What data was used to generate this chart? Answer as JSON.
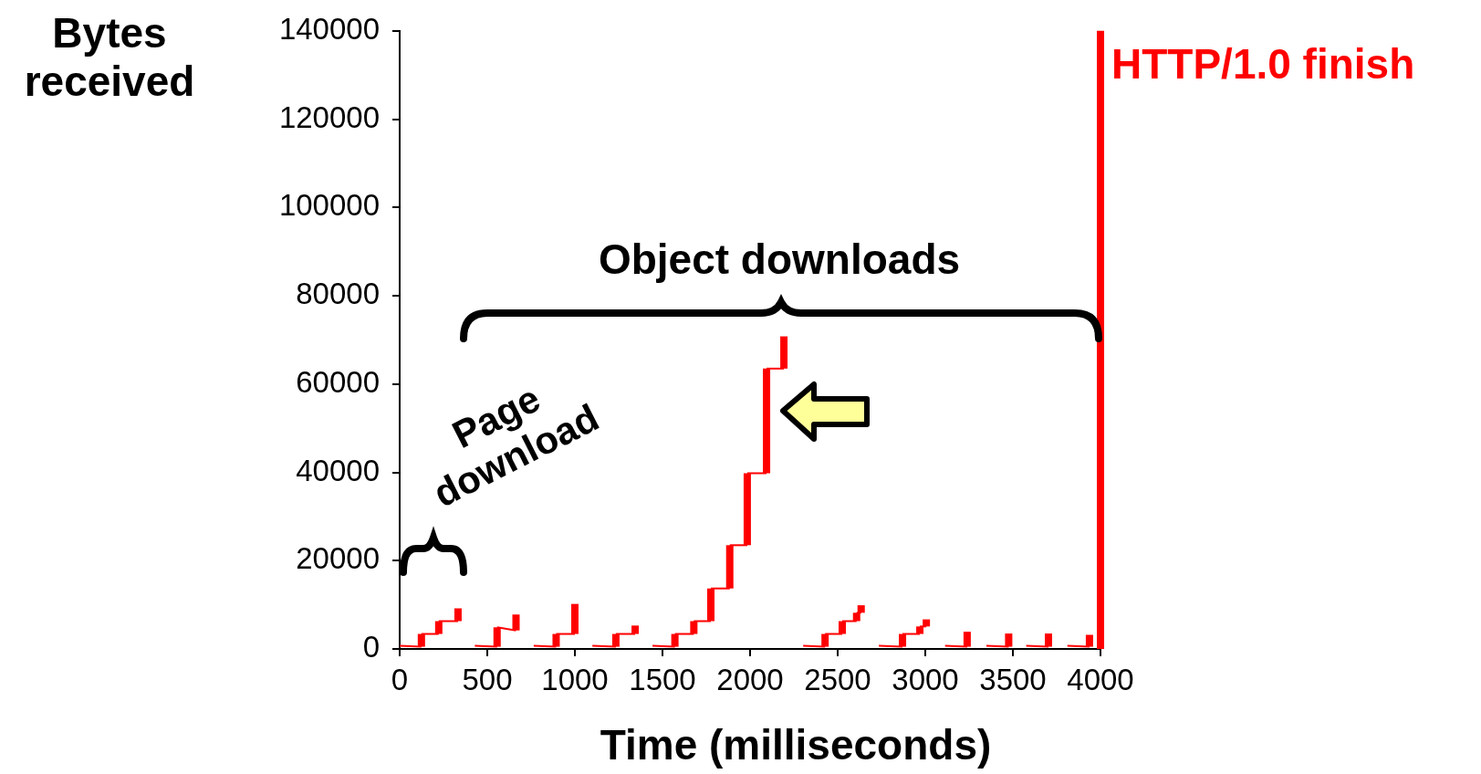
{
  "chart_data": {
    "type": "line",
    "xlabel": "Time (milliseconds)",
    "ylabel": "Bytes received",
    "xlim": [
      0,
      4000
    ],
    "xticks": [
      0,
      500,
      1000,
      1500,
      2000,
      2500,
      3000,
      3500,
      4000
    ],
    "ylim": [
      0,
      140000
    ],
    "yticks": [
      0,
      20000,
      40000,
      60000,
      80000,
      100000,
      120000,
      140000
    ],
    "grid": false,
    "legend": false,
    "marker": "none",
    "ref_lines": [
      {
        "axis": "x",
        "value": 4000,
        "label": "HTTP/1.0 finish",
        "color": "#ff0000"
      }
    ],
    "annotations": [
      "Object downloads",
      "Page download"
    ],
    "series": [
      {
        "color": "#ff0000",
        "x": [
          0,
          124,
          124,
          223,
          223,
          333,
          333
        ],
        "values": [
          700,
          500,
          3400,
          3400,
          6300,
          6300,
          9200
        ]
      },
      {
        "color": "#ff0000",
        "x": [
          429,
          556,
          556,
          664,
          664
        ],
        "values": [
          700,
          500,
          4900,
          4200,
          7800
        ]
      },
      {
        "color": "#ff0000",
        "x": [
          765,
          893,
          893,
          1000,
          1000
        ],
        "values": [
          700,
          500,
          3400,
          3400,
          10200
        ]
      },
      {
        "color": "#ff0000",
        "x": [
          1100,
          1234,
          1234,
          1344,
          1344
        ],
        "values": [
          700,
          500,
          3400,
          3400,
          5300
        ]
      },
      {
        "color": "#ff0000",
        "x": [
          1443,
          1571,
          1571,
          1679,
          1679,
          1776,
          1776,
          1884,
          1884,
          1984,
          1984,
          2094,
          2094,
          2193,
          2193
        ],
        "values": [
          700,
          500,
          3400,
          3400,
          6300,
          6300,
          13700,
          13700,
          23500,
          23500,
          39800,
          39800,
          63500,
          63500,
          70800
        ]
      },
      {
        "color": "#ff0000",
        "x": [
          2303,
          2428,
          2428,
          2526,
          2526,
          2608,
          2608,
          2634,
          2634
        ],
        "values": [
          700,
          500,
          3400,
          3400,
          6300,
          6300,
          8200,
          8200,
          9900
        ]
      },
      {
        "color": "#ff0000",
        "x": [
          2735,
          2870,
          2870,
          2969,
          2969,
          3006,
          3006
        ],
        "values": [
          700,
          500,
          3400,
          3400,
          5100,
          5100,
          6700
        ]
      },
      {
        "color": "#ff0000",
        "x": [
          3113,
          3239,
          3239
        ],
        "values": [
          700,
          500,
          3900
        ]
      },
      {
        "color": "#ff0000",
        "x": [
          3349,
          3476,
          3476
        ],
        "values": [
          700,
          500,
          3500
        ]
      },
      {
        "color": "#ff0000",
        "x": [
          3576,
          3703,
          3703
        ],
        "values": [
          700,
          500,
          3500
        ]
      },
      {
        "color": "#ff0000",
        "x": [
          3811,
          3937,
          3937
        ],
        "values": [
          700,
          500,
          3200
        ]
      }
    ]
  }
}
